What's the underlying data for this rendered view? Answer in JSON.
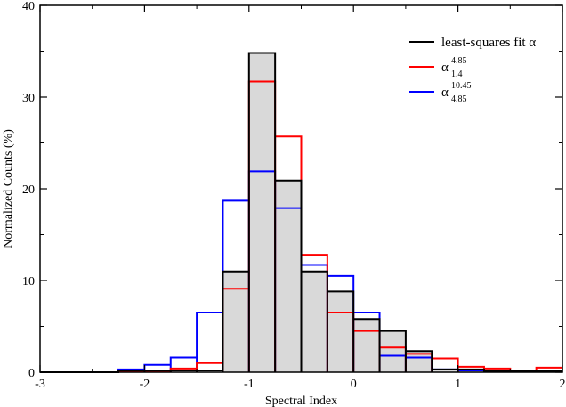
{
  "chart_data": {
    "type": "histogram",
    "title": "",
    "xlabel": "Spectral Index",
    "ylabel": "Normalized Counts (%)",
    "xlim": [
      -3,
      2
    ],
    "ylim": [
      0,
      40
    ],
    "xticks": [
      -3,
      -2,
      -1,
      0,
      1,
      2
    ],
    "yticks": [
      0,
      10,
      20,
      30,
      40
    ],
    "xtick_labels": [
      "-3",
      "-2",
      "-1",
      "0",
      "1",
      "2"
    ],
    "ytick_labels": [
      "0",
      "10",
      "20",
      "30",
      "40"
    ],
    "grid": false,
    "legend_position": "top-right",
    "bin_edges": [
      -3.0,
      -2.75,
      -2.5,
      -2.25,
      -2.0,
      -1.75,
      -1.5,
      -1.25,
      -1.0,
      -0.75,
      -0.5,
      -0.25,
      0.0,
      0.25,
      0.5,
      0.75,
      1.0,
      1.25,
      1.5,
      1.75,
      2.0
    ],
    "series": [
      {
        "name": "least-squares fit α",
        "color": "#000000",
        "filled": true,
        "fill_color": "#d9d9d9",
        "values": [
          0,
          0,
          0,
          0.2,
          0.2,
          0.2,
          0.2,
          11.0,
          34.8,
          20.9,
          11.0,
          8.8,
          5.8,
          4.5,
          2.3,
          0.3,
          0.3,
          0.1,
          0.1,
          0.1
        ]
      },
      {
        "name": "α",
        "label_sup": "4.85",
        "label_sub": "1.4",
        "color": "#ff0000",
        "filled": false,
        "values": [
          0,
          0,
          0,
          0.1,
          0.1,
          0.4,
          1.0,
          9.1,
          31.7,
          25.7,
          12.8,
          6.5,
          4.5,
          2.7,
          2.0,
          1.5,
          0.6,
          0.4,
          0.2,
          0.5
        ]
      },
      {
        "name": "α",
        "label_sup": "10.45",
        "label_sub": "4.85",
        "color": "#0000ff",
        "filled": false,
        "values": [
          0,
          0,
          0,
          0.3,
          0.8,
          1.6,
          6.5,
          18.7,
          21.9,
          17.9,
          11.7,
          10.5,
          6.5,
          1.8,
          1.6,
          0.3,
          0.2,
          0.1,
          0.1,
          0.1
        ]
      }
    ]
  }
}
